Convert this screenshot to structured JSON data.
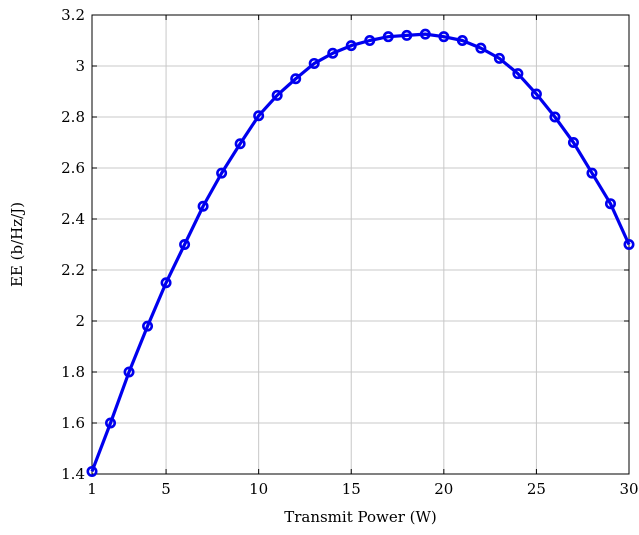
{
  "chart_data": {
    "type": "line",
    "xlabel": "Transmit Power (W)",
    "ylabel": "EE (b/Hz/J)",
    "xlim": [
      1,
      30
    ],
    "ylim": [
      1.4,
      3.2
    ],
    "xticks": [
      1,
      5,
      10,
      15,
      20,
      25,
      30
    ],
    "yticks": [
      1.4,
      1.6,
      1.8,
      2,
      2.2,
      2.4,
      2.6,
      2.8,
      3,
      3.2
    ],
    "xtick_labels": [
      "1",
      "5",
      "10",
      "15",
      "20",
      "25",
      "30"
    ],
    "ytick_labels": [
      "1.4",
      "1.6",
      "1.8",
      "2",
      "2.2",
      "2.4",
      "2.6",
      "2.8",
      "3",
      "3.2"
    ],
    "grid": true,
    "legend": "none",
    "series": [
      {
        "color": "#0000ee",
        "marker": "circle",
        "x": [
          1,
          2,
          3,
          4,
          5,
          6,
          7,
          8,
          9,
          10,
          11,
          12,
          13,
          14,
          15,
          16,
          17,
          18,
          19,
          20,
          21,
          22,
          23,
          24,
          25,
          26,
          27,
          28,
          29,
          30
        ],
        "values": [
          1.41,
          1.6,
          1.8,
          1.98,
          2.15,
          2.3,
          2.45,
          2.58,
          2.695,
          2.805,
          2.885,
          2.95,
          3.01,
          3.05,
          3.08,
          3.1,
          3.115,
          3.12,
          3.125,
          3.115,
          3.1,
          3.07,
          3.03,
          2.97,
          2.89,
          2.8,
          2.7,
          2.58,
          2.46,
          2.3
        ]
      }
    ]
  }
}
